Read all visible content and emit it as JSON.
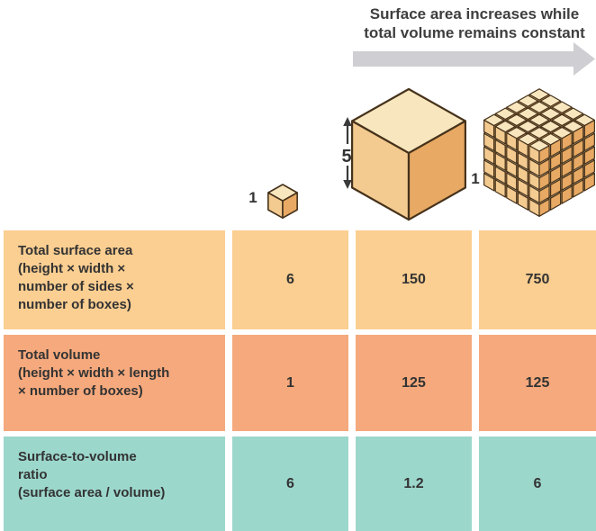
{
  "title": {
    "text": "Surface area increases while\ntotal volume remains constant"
  },
  "figure": {
    "arrow_icon": "right-arrow",
    "small_cube": {
      "label": "1"
    },
    "large_cube": {
      "dimension_label": "5"
    },
    "cube_array": {
      "label": "1"
    }
  },
  "table": {
    "rows": [
      {
        "label": "Total surface area\n(height × width ×\nnumber of sides ×\nnumber of boxes)",
        "values": [
          "6",
          "150",
          "750"
        ]
      },
      {
        "label": "Total volume\n(height × width × length\n× number of boxes)",
        "values": [
          "1",
          "125",
          "125"
        ]
      },
      {
        "label": "Surface-to-volume\nratio\n(surface area / volume)",
        "values": [
          "6",
          "1.2",
          "6"
        ]
      }
    ]
  },
  "colors": {
    "row_surface_area_bg": "#FBCE91",
    "row_volume_bg": "#F5A97C",
    "row_ratio_bg": "#9CD7CC",
    "cube_top": "#F8E6BE",
    "cube_left": "#F3CA90",
    "cube_right": "#E7A963",
    "cube_outline": "#46321B",
    "arrow_gray": "#CECED3",
    "dimension_arrow": "#3a3a3a",
    "text_dark": "#333333"
  }
}
